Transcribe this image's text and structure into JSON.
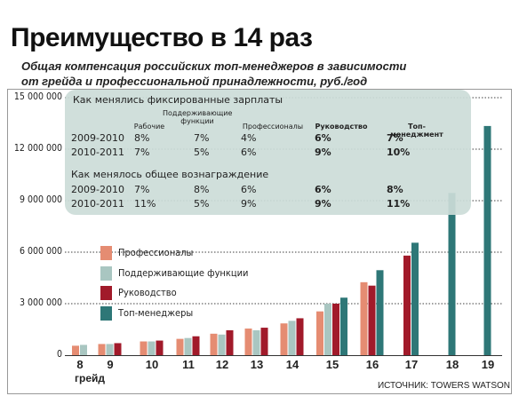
{
  "title": "Преимущество в 14 раз",
  "subtitle_line1": "Общая компенсация российских топ-менеджеров в зависимости",
  "subtitle_line2": "от грейда и профессиональной принадлежности, руб./год",
  "source": "ИСТОЧНИК: TOWERS WATSON",
  "grade_word": "грейд",
  "yticks": [
    "15 000 000",
    "12 000 000",
    "9 000 000",
    "6 000 000",
    "3 000 000",
    "0"
  ],
  "table": {
    "section1": "Как менялись фиксированные зарплаты",
    "section2": "Как менялось общее вознаграждение",
    "col_headers": [
      "Рабочие",
      "Поддерживающие функции",
      "Профессионалы",
      "Руководство",
      "Топ-менеджмент"
    ],
    "fixed_rows": [
      {
        "year": "2009-2010",
        "values": [
          "8%",
          "7%",
          "4%",
          "6%",
          "7%"
        ]
      },
      {
        "year": "2010-2011",
        "values": [
          "7%",
          "5%",
          "6%",
          "9%",
          "10%"
        ]
      }
    ],
    "total_rows": [
      {
        "year": "2009-2010",
        "values": [
          "7%",
          "8%",
          "6%",
          "6%",
          "8%"
        ]
      },
      {
        "year": "2010-2011",
        "values": [
          "11%",
          "5%",
          "9%",
          "9%",
          "11%"
        ]
      }
    ]
  },
  "legend": [
    {
      "label": "Профессионалы",
      "color": "#e58c72"
    },
    {
      "label": "Поддерживающие функции",
      "color": "#a9c6c1"
    },
    {
      "label": "Руководство",
      "color": "#a11a2a"
    },
    {
      "label": "Топ-менеджеры",
      "color": "#2e7777"
    }
  ],
  "chart_data": {
    "type": "bar",
    "title": "Преимущество в 14 раз",
    "subtitle": "Общая компенсация российских топ-менеджеров в зависимости от грейда и профессиональной принадлежности, руб./год",
    "xlabel": "грейд",
    "ylabel": "",
    "ylim": [
      0,
      15000000
    ],
    "categories": [
      "8",
      "9",
      "10",
      "11",
      "12",
      "13",
      "14",
      "15",
      "16",
      "17",
      "18",
      "19"
    ],
    "series": [
      {
        "name": "Профессионалы",
        "color": "#e58c72",
        "values": [
          550000,
          650000,
          800000,
          950000,
          1250000,
          1550000,
          1850000,
          2550000,
          4250000,
          null,
          null,
          null
        ]
      },
      {
        "name": "Поддерживающие функции",
        "color": "#a9c6c1",
        "values": [
          600000,
          650000,
          800000,
          1000000,
          1200000,
          1450000,
          2000000,
          3000000,
          null,
          null,
          null,
          null
        ]
      },
      {
        "name": "Руководство",
        "color": "#a11a2a",
        "values": [
          null,
          700000,
          850000,
          1100000,
          1450000,
          1600000,
          2150000,
          3000000,
          4050000,
          5800000,
          null,
          null
        ]
      },
      {
        "name": "Топ-менеджеры",
        "color": "#2e7777",
        "values": [
          null,
          null,
          null,
          null,
          null,
          null,
          null,
          3350000,
          4950000,
          6550000,
          9450000,
          13350000
        ]
      }
    ]
  }
}
